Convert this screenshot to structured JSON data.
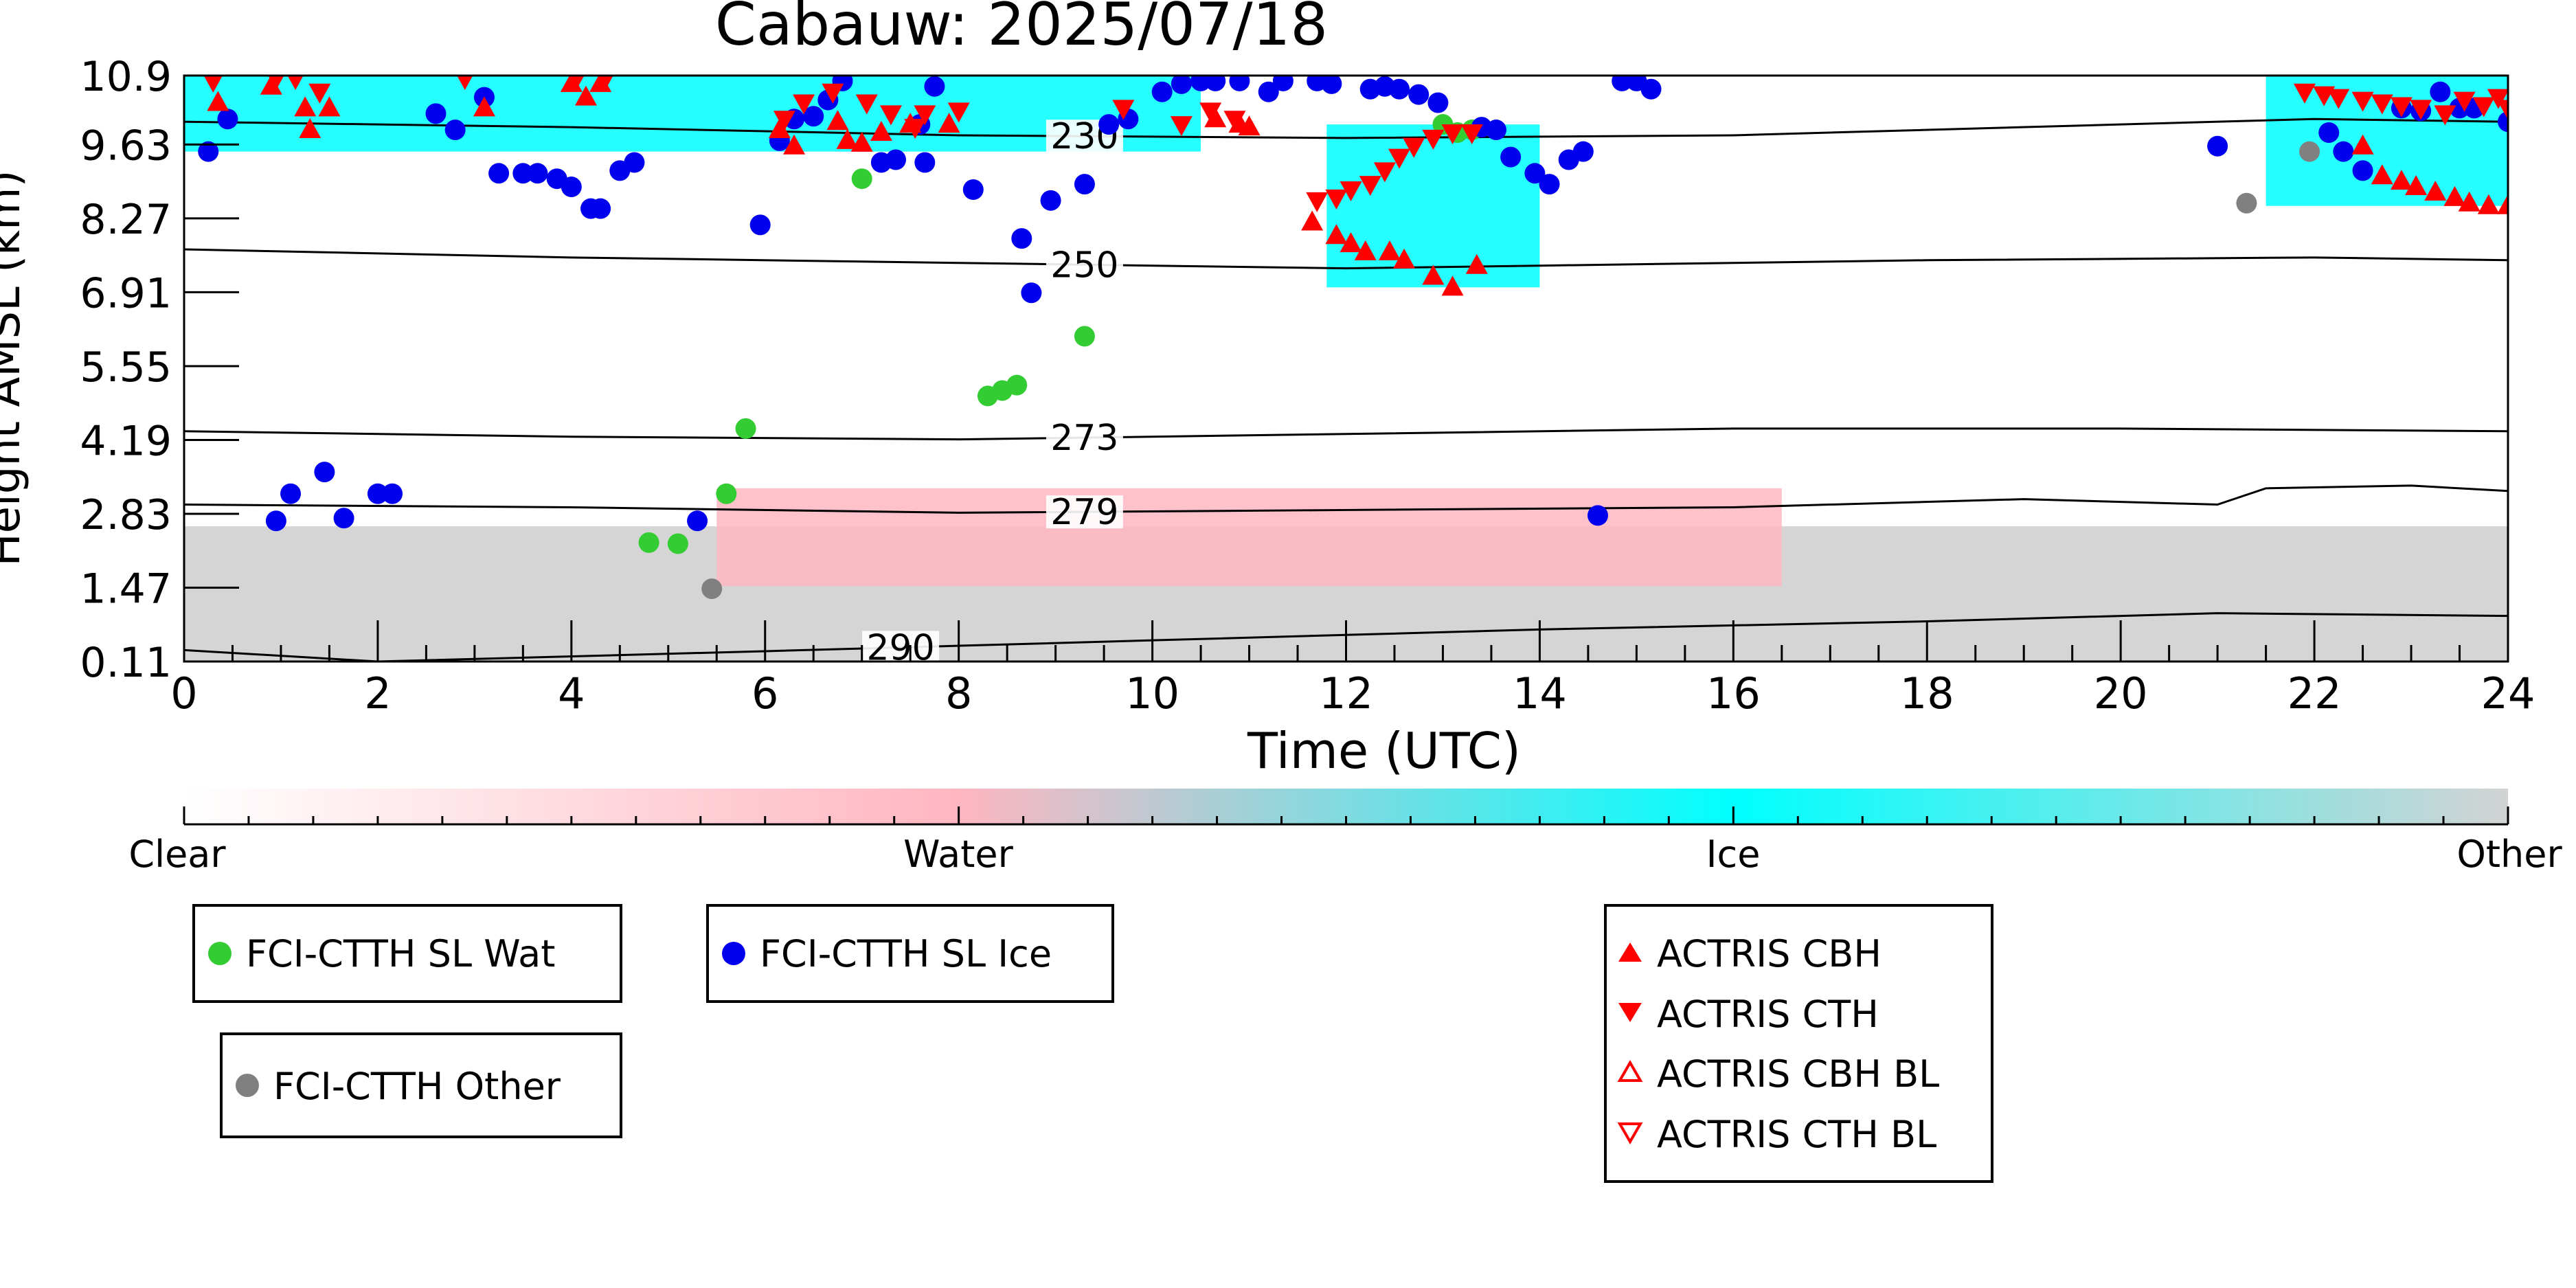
{
  "chart_data": {
    "type": "scatter",
    "title": "Cabauw: 2025/07/18",
    "xlabel": "Time (UTC)",
    "ylabel": "Height AMSL (km)",
    "xlim": [
      0,
      24
    ],
    "ylim": [
      0.11,
      10.9
    ],
    "x_ticks": [
      0,
      2,
      4,
      6,
      8,
      10,
      12,
      14,
      16,
      18,
      20,
      22,
      24
    ],
    "y_ticks": [
      "0.11",
      "1.47",
      "2.83",
      "4.19",
      "5.55",
      "6.91",
      "8.27",
      "9.63",
      "10.9"
    ],
    "colorbar": {
      "labels": [
        "Clear",
        "Water",
        "Ice",
        "Other"
      ],
      "colors": [
        "#ffffff",
        "#ffb6c1",
        "#00ffff",
        "#d3d3d3"
      ]
    },
    "background_classification": [
      {
        "class": "Other",
        "description": "low clutter",
        "x_range": [
          0,
          24
        ],
        "y_range": [
          0.11,
          2.6
        ]
      },
      {
        "class": "Water",
        "x_range": [
          5.5,
          16.5
        ],
        "y_range": [
          1.5,
          3.3
        ]
      },
      {
        "class": "Ice",
        "x_range": [
          11.8,
          14
        ],
        "y_range": [
          7,
          10
        ]
      },
      {
        "class": "Ice",
        "x_range": [
          21.5,
          24
        ],
        "y_range": [
          8.5,
          10.9
        ]
      },
      {
        "class": "Ice",
        "x_range": [
          0,
          10.5
        ],
        "y_range": [
          9.5,
          10.9
        ]
      }
    ],
    "contours": [
      {
        "label": "290",
        "label_x": 7.4,
        "points": [
          [
            0,
            0.32
          ],
          [
            2,
            0.11
          ],
          [
            6,
            0.3
          ],
          [
            10,
            0.5
          ],
          [
            14,
            0.7
          ],
          [
            18,
            0.85
          ],
          [
            21,
            1.0
          ],
          [
            24,
            0.95
          ]
        ]
      },
      {
        "label": "279",
        "label_x": 9.3,
        "points": [
          [
            0,
            3.0
          ],
          [
            4,
            2.95
          ],
          [
            8,
            2.85
          ],
          [
            12,
            2.9
          ],
          [
            16,
            2.95
          ],
          [
            19,
            3.1
          ],
          [
            21,
            3.0
          ],
          [
            21.5,
            3.3
          ],
          [
            23,
            3.35
          ],
          [
            24,
            3.25
          ]
        ]
      },
      {
        "label": "273",
        "label_x": 9.3,
        "points": [
          [
            0,
            4.35
          ],
          [
            4,
            4.25
          ],
          [
            8,
            4.2
          ],
          [
            12,
            4.3
          ],
          [
            16,
            4.4
          ],
          [
            20,
            4.4
          ],
          [
            24,
            4.35
          ]
        ]
      },
      {
        "label": "250",
        "label_x": 9.3,
        "points": [
          [
            0,
            7.7
          ],
          [
            4,
            7.55
          ],
          [
            8,
            7.45
          ],
          [
            12,
            7.35
          ],
          [
            14,
            7.4
          ],
          [
            18,
            7.5
          ],
          [
            22,
            7.55
          ],
          [
            24,
            7.5
          ]
        ]
      },
      {
        "label": "230",
        "label_x": 9.3,
        "points": [
          [
            0,
            10.05
          ],
          [
            4,
            9.95
          ],
          [
            8,
            9.8
          ],
          [
            12,
            9.75
          ],
          [
            16,
            9.8
          ],
          [
            20,
            10.0
          ],
          [
            22,
            10.1
          ],
          [
            24,
            10.05
          ]
        ]
      }
    ],
    "series": [
      {
        "name": "FCI-CTTH SL Wat",
        "color": "#33cc33",
        "marker": "circle",
        "points": [
          [
            4.8,
            2.3
          ],
          [
            5.1,
            2.28
          ],
          [
            5.6,
            3.2
          ],
          [
            5.8,
            4.4
          ],
          [
            7.0,
            9.0
          ],
          [
            8.3,
            5.0
          ],
          [
            8.45,
            5.1
          ],
          [
            8.6,
            5.2
          ],
          [
            9.3,
            6.1
          ],
          [
            13.0,
            10.0
          ],
          [
            13.15,
            9.85
          ],
          [
            13.3,
            9.9
          ]
        ]
      },
      {
        "name": "FCI-CTTH SL Ice",
        "color": "#0000ee",
        "marker": "circle",
        "points": [
          [
            0.25,
            9.5
          ],
          [
            0.45,
            10.1
          ],
          [
            0.95,
            2.7
          ],
          [
            1.1,
            3.2
          ],
          [
            1.45,
            3.6
          ],
          [
            1.65,
            2.75
          ],
          [
            2.0,
            3.2
          ],
          [
            2.15,
            3.2
          ],
          [
            2.6,
            10.2
          ],
          [
            2.8,
            9.9
          ],
          [
            3.1,
            10.5
          ],
          [
            3.25,
            9.1
          ],
          [
            3.5,
            9.1
          ],
          [
            3.65,
            9.1
          ],
          [
            3.85,
            9.0
          ],
          [
            4.0,
            8.85
          ],
          [
            4.2,
            8.45
          ],
          [
            4.3,
            8.45
          ],
          [
            4.5,
            9.15
          ],
          [
            4.65,
            9.3
          ],
          [
            5.3,
            2.7
          ],
          [
            5.95,
            8.15
          ],
          [
            6.15,
            9.7
          ],
          [
            6.3,
            10.1
          ],
          [
            6.5,
            10.15
          ],
          [
            6.65,
            10.45
          ],
          [
            6.8,
            10.8
          ],
          [
            7.2,
            9.3
          ],
          [
            7.35,
            9.35
          ],
          [
            7.6,
            10.0
          ],
          [
            7.65,
            9.3
          ],
          [
            7.75,
            10.7
          ],
          [
            8.15,
            8.8
          ],
          [
            8.65,
            7.9
          ],
          [
            8.75,
            6.9
          ],
          [
            8.95,
            8.6
          ],
          [
            9.3,
            8.9
          ],
          [
            9.55,
            10.0
          ],
          [
            9.75,
            10.1
          ],
          [
            10.1,
            10.6
          ],
          [
            10.3,
            10.75
          ],
          [
            10.5,
            10.8
          ],
          [
            10.65,
            10.8
          ],
          [
            10.9,
            10.8
          ],
          [
            11.2,
            10.6
          ],
          [
            11.35,
            10.8
          ],
          [
            11.7,
            10.8
          ],
          [
            11.85,
            10.75
          ],
          [
            12.25,
            10.65
          ],
          [
            12.4,
            10.7
          ],
          [
            12.55,
            10.65
          ],
          [
            12.75,
            10.55
          ],
          [
            12.95,
            10.4
          ],
          [
            13.4,
            9.95
          ],
          [
            13.55,
            9.9
          ],
          [
            13.7,
            9.4
          ],
          [
            13.95,
            9.1
          ],
          [
            14.1,
            8.9
          ],
          [
            14.3,
            9.35
          ],
          [
            14.45,
            9.5
          ],
          [
            14.6,
            2.8
          ],
          [
            14.85,
            10.8
          ],
          [
            15.0,
            10.8
          ],
          [
            15.15,
            10.65
          ],
          [
            21.0,
            9.6
          ],
          [
            22.15,
            9.85
          ],
          [
            22.3,
            9.5
          ],
          [
            22.5,
            9.15
          ],
          [
            22.9,
            10.3
          ],
          [
            23.1,
            10.25
          ],
          [
            23.3,
            10.6
          ],
          [
            23.5,
            10.3
          ],
          [
            23.65,
            10.3
          ],
          [
            24.0,
            10.05
          ]
        ]
      },
      {
        "name": "FCI-CTTH Other",
        "color": "#808080",
        "marker": "circle",
        "points": [
          [
            5.45,
            1.45
          ],
          [
            21.3,
            8.55
          ],
          [
            21.95,
            9.5
          ]
        ]
      },
      {
        "name": "ACTRIS CBH",
        "color": "#ff0000",
        "marker": "triangle-up",
        "points": [
          [
            0.35,
            10.4
          ],
          [
            0.9,
            10.7
          ],
          [
            1.25,
            10.3
          ],
          [
            1.3,
            9.9
          ],
          [
            1.5,
            10.3
          ],
          [
            3.1,
            10.3
          ],
          [
            4.0,
            10.75
          ],
          [
            4.15,
            10.5
          ],
          [
            4.3,
            10.75
          ],
          [
            6.15,
            9.9
          ],
          [
            6.3,
            9.6
          ],
          [
            6.75,
            10.05
          ],
          [
            6.85,
            9.7
          ],
          [
            7.0,
            9.65
          ],
          [
            7.2,
            9.85
          ],
          [
            7.5,
            10.0
          ],
          [
            7.9,
            10.0
          ],
          [
            10.65,
            10.1
          ],
          [
            10.9,
            10.0
          ],
          [
            11.0,
            9.95
          ],
          [
            11.65,
            8.2
          ],
          [
            11.9,
            7.95
          ],
          [
            12.05,
            7.8
          ],
          [
            12.2,
            7.65
          ],
          [
            12.45,
            7.65
          ],
          [
            12.6,
            7.5
          ],
          [
            12.9,
            7.2
          ],
          [
            13.1,
            7.0
          ],
          [
            13.35,
            7.4
          ],
          [
            22.5,
            9.6
          ],
          [
            22.7,
            9.05
          ],
          [
            22.9,
            8.95
          ],
          [
            23.05,
            8.85
          ],
          [
            23.25,
            8.75
          ],
          [
            23.45,
            8.65
          ],
          [
            23.6,
            8.55
          ],
          [
            23.8,
            8.5
          ],
          [
            24.0,
            8.5
          ]
        ]
      },
      {
        "name": "ACTRIS CTH",
        "color": "#ff0000",
        "marker": "triangle-down",
        "points": [
          [
            0.3,
            10.8
          ],
          [
            0.95,
            10.85
          ],
          [
            1.15,
            10.85
          ],
          [
            1.4,
            10.6
          ],
          [
            2.9,
            10.85
          ],
          [
            4.05,
            10.85
          ],
          [
            4.35,
            10.85
          ],
          [
            6.2,
            10.1
          ],
          [
            6.4,
            10.4
          ],
          [
            6.7,
            10.6
          ],
          [
            7.05,
            10.4
          ],
          [
            7.3,
            10.2
          ],
          [
            7.55,
            9.95
          ],
          [
            7.65,
            10.2
          ],
          [
            8.0,
            10.25
          ],
          [
            9.7,
            10.3
          ],
          [
            10.3,
            10.0
          ],
          [
            10.6,
            10.25
          ],
          [
            10.85,
            10.1
          ],
          [
            11.7,
            8.6
          ],
          [
            11.9,
            8.65
          ],
          [
            12.05,
            8.8
          ],
          [
            12.25,
            8.9
          ],
          [
            12.4,
            9.15
          ],
          [
            12.55,
            9.4
          ],
          [
            12.7,
            9.6
          ],
          [
            12.9,
            9.75
          ],
          [
            13.1,
            9.85
          ],
          [
            13.3,
            9.85
          ],
          [
            21.9,
            10.6
          ],
          [
            22.1,
            10.55
          ],
          [
            22.25,
            10.5
          ],
          [
            22.5,
            10.45
          ],
          [
            22.7,
            10.4
          ],
          [
            22.9,
            10.35
          ],
          [
            23.1,
            10.3
          ],
          [
            23.35,
            10.2
          ],
          [
            23.55,
            10.45
          ],
          [
            23.75,
            10.35
          ],
          [
            23.9,
            10.5
          ],
          [
            24.0,
            10.3
          ]
        ]
      }
    ],
    "legends": [
      {
        "entries": [
          "FCI-CTTH SL Wat"
        ]
      },
      {
        "entries": [
          "FCI-CTTH SL Ice"
        ]
      },
      {
        "entries": [
          "FCI-CTTH Other"
        ]
      },
      {
        "entries": [
          "ACTRIS CBH",
          "ACTRIS CTH",
          "ACTRIS CBH BL",
          "ACTRIS CTH BL"
        ]
      }
    ]
  }
}
